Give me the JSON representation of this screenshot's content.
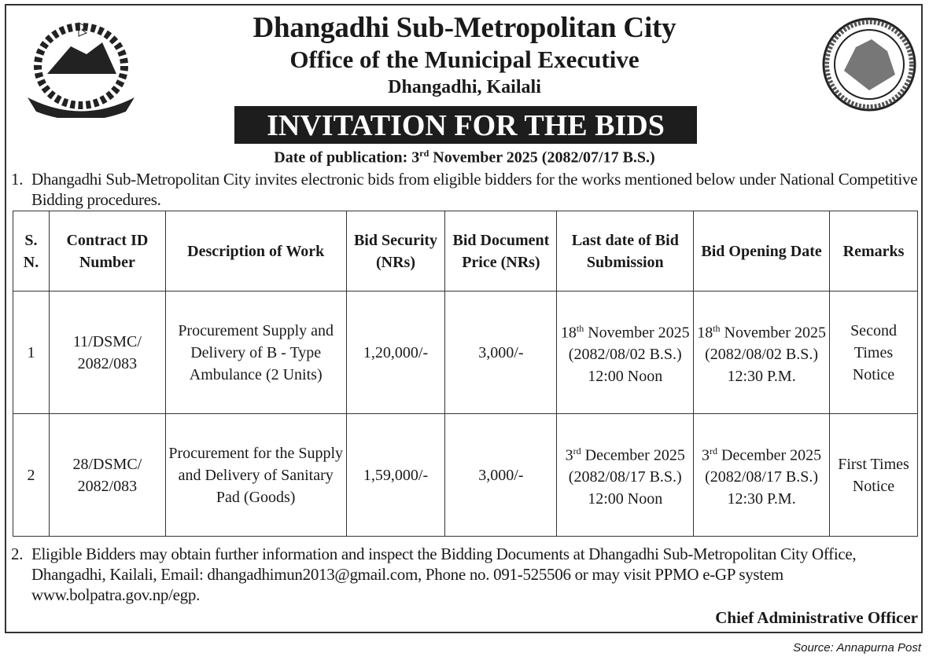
{
  "header": {
    "title": "Dhangadhi Sub-Metropolitan City",
    "subtitle": "Office of the Municipal Executive",
    "location": "Dhangadhi, Kailali",
    "banner": "INVITATION FOR THE BIDS",
    "publication_prefix": "Date of publication: 3",
    "publication_sup": "rd",
    "publication_suffix": " November 2025 (2082/07/17 B.S.)"
  },
  "logos": {
    "left": "nepal-emblem",
    "right": "municipality-seal"
  },
  "paragraph1": {
    "num": "1.",
    "text": "Dhangadhi Sub-Metropolitan City invites electronic bids from eligible bidders for the works mentioned below under National Competitive Bidding procedures."
  },
  "table": {
    "headers": [
      "S. N.",
      "Contract ID Number",
      "Description of Work",
      "Bid Security (NRs)",
      "Bid Document Price (NRs)",
      "Last date of Bid Submission",
      "Bid Opening Date",
      "Remarks"
    ],
    "rows": [
      {
        "sn": "1",
        "contract_id": "11/DSMC/ 2082/083",
        "description": "Procurement Supply and Delivery of B - Type Ambulance (2 Units)",
        "bid_security": "1,20,000/-",
        "doc_price": "3,000/-",
        "submission_day": "18",
        "submission_sup": "th",
        "submission_rest": " November 2025 (2082/08/02 B.S.) 12:00 Noon",
        "opening_day": "18",
        "opening_sup": "th",
        "opening_rest": " November 2025 (2082/08/02 B.S.) 12:30 P.M.",
        "remarks": "Second Times Notice"
      },
      {
        "sn": "2",
        "contract_id": "28/DSMC/ 2082/083",
        "description": "Procurement for the Supply and Delivery of Sanitary Pad (Goods)",
        "bid_security": "1,59,000/-",
        "doc_price": "3,000/-",
        "submission_day": "3",
        "submission_sup": "rd",
        "submission_rest": " December 2025 (2082/08/17 B.S.) 12:00 Noon",
        "opening_day": "3",
        "opening_sup": "rd",
        "opening_rest": " December 2025 (2082/08/17 B.S.) 12:30 P.M.",
        "remarks": "First Times Notice"
      }
    ]
  },
  "paragraph2": {
    "num": "2.",
    "text": "Eligible Bidders may obtain further information and inspect the Bidding Documents at Dhangadhi Sub-Metropolitan City Office, Dhangadhi, Kailali, Email: dhangadhimun2013@gmail.com, Phone no. 091-525506 or may visit PPMO e-GP system www.bolpatra.gov.np/egp."
  },
  "signature": "Chief Administrative Officer",
  "source": "Source: Annapurna Post"
}
